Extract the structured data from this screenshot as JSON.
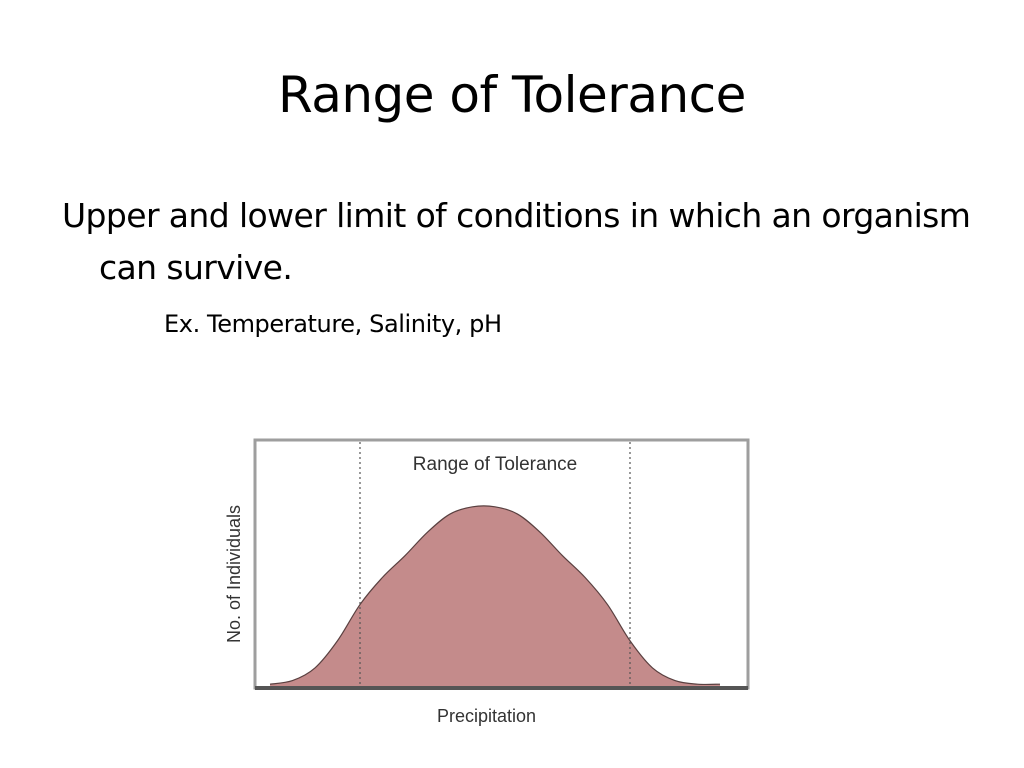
{
  "slide": {
    "title": "Range of Tolerance",
    "bullet": "Upper and lower limit of conditions in which an organism can survive.",
    "sub_bullet": "Ex. Temperature, Salinity, pH"
  },
  "chart_data": {
    "type": "area",
    "title": "Range of Tolerance",
    "xlabel": "Precipitation",
    "ylabel": "No. of Individuals",
    "x_ticks": [],
    "y_ticks": [],
    "xlim": [
      0,
      100
    ],
    "ylim": [
      0,
      100
    ],
    "grid": false,
    "tolerance_limits": [
      20,
      80
    ],
    "series": [
      {
        "x": [
          0,
          5,
          10,
          15,
          20,
          25,
          30,
          35,
          40,
          45,
          50,
          55,
          60,
          65,
          70,
          75,
          80,
          85,
          90,
          95,
          100
        ],
        "values": [
          1,
          3,
          10,
          25,
          45,
          60,
          72,
          85,
          95,
          99,
          99,
          95,
          85,
          72,
          60,
          45,
          25,
          10,
          3,
          1,
          1
        ]
      }
    ],
    "colors": {
      "fill": "#c48b8b",
      "outline": "#5a4040",
      "frame": "#9e9e9e",
      "dotted_line": "#555555",
      "axis_text": "#333333"
    }
  }
}
